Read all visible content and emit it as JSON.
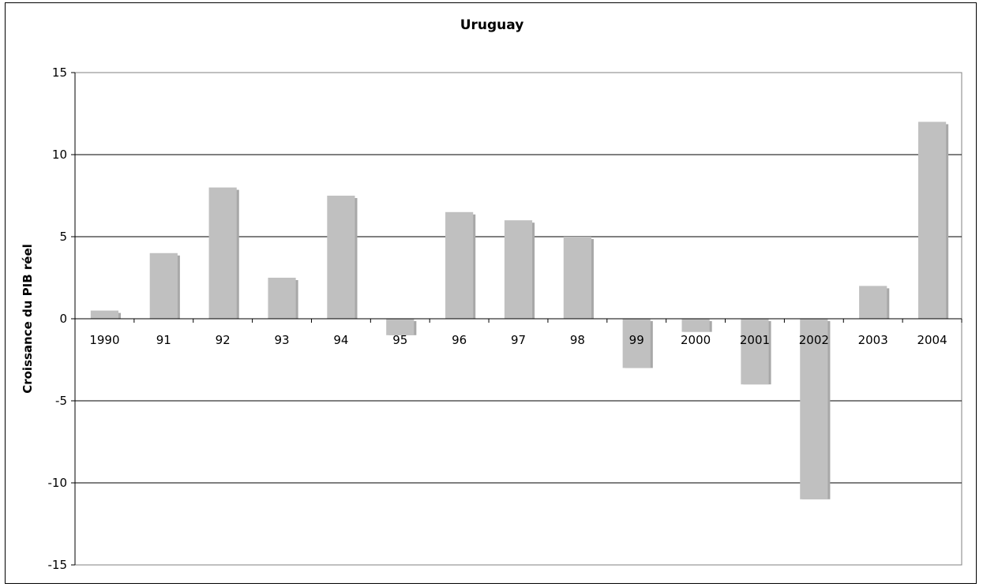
{
  "chart_data": {
    "type": "bar",
    "title": "Uruguay",
    "xlabel": "",
    "ylabel": "Croissance du PIB réel",
    "categories": [
      "1990",
      "91",
      "92",
      "93",
      "94",
      "95",
      "96",
      "97",
      "98",
      "99",
      "2000",
      "2001",
      "2002",
      "2003",
      "2004"
    ],
    "values": [
      0.5,
      4.0,
      8.0,
      2.5,
      7.5,
      -1.0,
      6.5,
      6.0,
      5.0,
      -3.0,
      -0.8,
      -4.0,
      -11.0,
      2.0,
      12.0
    ],
    "ylim": [
      -15,
      15
    ],
    "yticks": [
      -15,
      -10,
      -5,
      0,
      5,
      10,
      15
    ],
    "grid": true,
    "bar_color": "#c0c0c0",
    "bar_shadow_color": "#a8a8a8"
  }
}
